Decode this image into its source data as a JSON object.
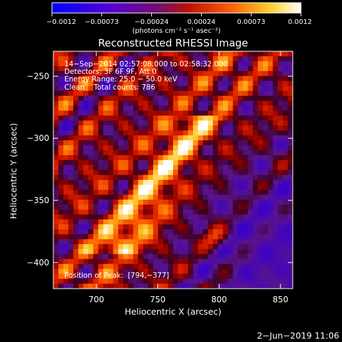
{
  "chart_data": {
    "type": "heatmap",
    "title": "Reconstructed RHESSI Image",
    "xlabel": "Heliocentric X (arcsec)",
    "ylabel": "Heliocentric Y (arcsec)",
    "xlim": [
      665,
      860
    ],
    "ylim": [
      -421,
      -230
    ],
    "x_ticks": [
      700,
      750,
      800,
      850
    ],
    "y_ticks": [
      -250,
      -300,
      -350,
      -400
    ],
    "x_tick_labels": [
      "700",
      "750",
      "800",
      "850"
    ],
    "y_tick_labels": [
      "−250",
      "−300",
      "−350",
      "−400"
    ],
    "peak_position": [
      794,
      -377
    ],
    "colorbar": {
      "range": [
        -0.0012,
        0.0012
      ],
      "tick_labels": [
        "−0.0012",
        "−0.00073",
        "−0.00024",
        "0.00024",
        "0.00073",
        "0.0012"
      ],
      "unit_label": "(photons cm⁻² s⁻¹ asec⁻²)",
      "colors": [
        "#0000ff",
        "#5a00d0",
        "#8a2070",
        "#d02000",
        "#ff7000",
        "#ffd030",
        "#ffffff"
      ]
    }
  },
  "annotations": {
    "time_range": "14−Sep−2014 02:57:08.000 to 02:58:32.000",
    "detectors": "Detectors: 3F 6F 9F, Att 0",
    "energy": "Energy Range: 25.0 − 50.0 keV",
    "method": "Clean    Total counts: 786",
    "peak": "Position of Peak:  [794,−377]"
  },
  "footer_date": "2−Jun−2019 11:06"
}
